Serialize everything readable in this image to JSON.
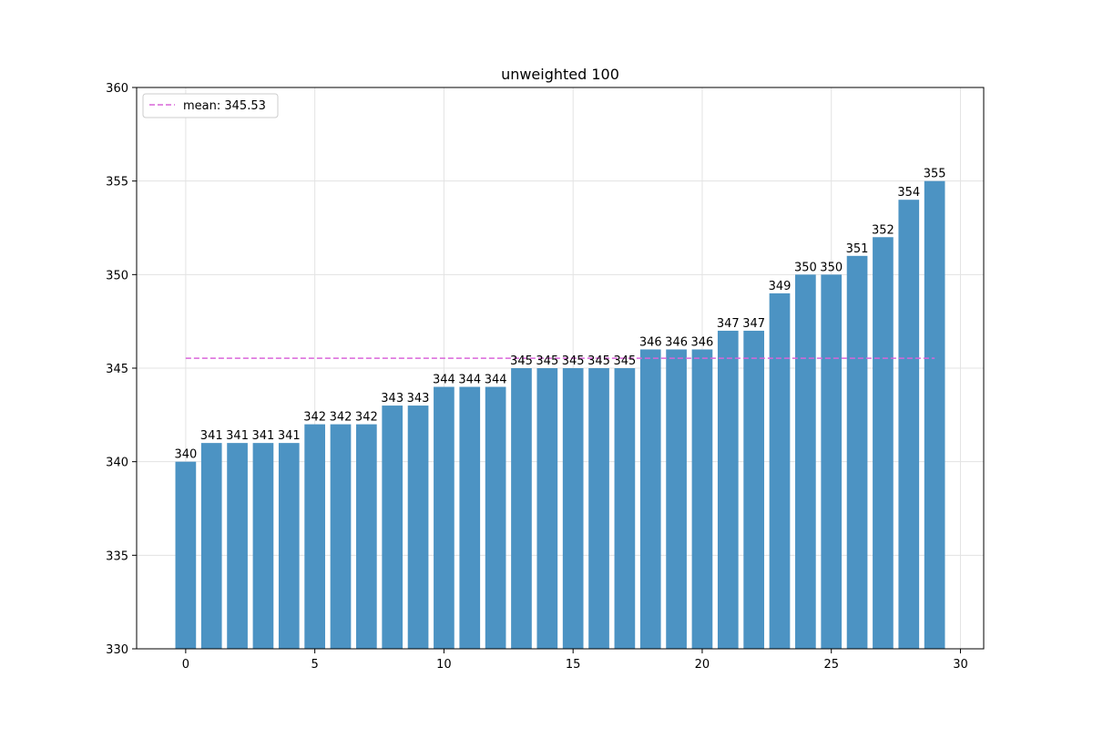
{
  "chart_data": {
    "type": "bar",
    "title": "unweighted 100",
    "xlabel": "",
    "ylabel": "",
    "x": [
      0,
      1,
      2,
      3,
      4,
      5,
      6,
      7,
      8,
      9,
      10,
      11,
      12,
      13,
      14,
      15,
      16,
      17,
      18,
      19,
      20,
      21,
      22,
      23,
      24,
      25,
      26,
      27,
      28,
      29
    ],
    "values": [
      340,
      341,
      341,
      341,
      341,
      342,
      342,
      342,
      343,
      343,
      344,
      344,
      344,
      345,
      345,
      345,
      345,
      345,
      346,
      346,
      346,
      347,
      347,
      349,
      350,
      350,
      351,
      352,
      354,
      355
    ],
    "xlim": [
      -1.9,
      30.9
    ],
    "ylim": [
      330,
      360
    ],
    "xticks": [
      0,
      5,
      10,
      15,
      20,
      25,
      30
    ],
    "yticks": [
      330,
      335,
      340,
      345,
      350,
      355,
      360
    ],
    "bar_color": "#4c93c3",
    "grid": true,
    "mean_line": {
      "value": 345.53,
      "label": "mean: 345.53",
      "color": "#d966d9",
      "style": "dashed",
      "x_range": [
        0,
        29
      ]
    },
    "legend_position": "top-left"
  }
}
